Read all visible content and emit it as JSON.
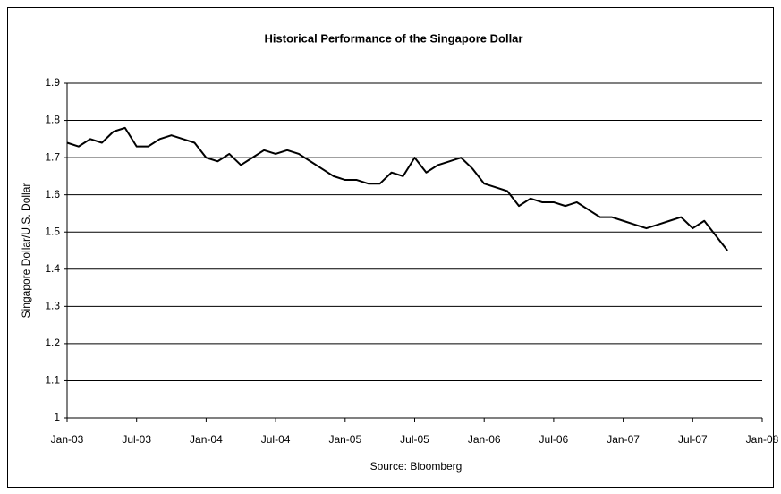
{
  "chart_data": {
    "type": "line",
    "title": "Historical Performance of the Singapore Dollar",
    "ylabel": "Singapore Dollar/U.S. Dollar",
    "xlabel": "Source: Bloomberg",
    "x": [
      "Jan-03",
      "Feb-03",
      "Mar-03",
      "Apr-03",
      "May-03",
      "Jun-03",
      "Jul-03",
      "Aug-03",
      "Sep-03",
      "Oct-03",
      "Nov-03",
      "Dec-03",
      "Jan-04",
      "Feb-04",
      "Mar-04",
      "Apr-04",
      "May-04",
      "Jun-04",
      "Jul-04",
      "Aug-04",
      "Sep-04",
      "Oct-04",
      "Nov-04",
      "Dec-04",
      "Jan-05",
      "Feb-05",
      "Mar-05",
      "Apr-05",
      "May-05",
      "Jun-05",
      "Jul-05",
      "Aug-05",
      "Sep-05",
      "Oct-05",
      "Nov-05",
      "Dec-05",
      "Jan-06",
      "Feb-06",
      "Mar-06",
      "Apr-06",
      "May-06",
      "Jun-06",
      "Jul-06",
      "Aug-06",
      "Sep-06",
      "Oct-06",
      "Nov-06",
      "Dec-06",
      "Jan-07",
      "Feb-07",
      "Mar-07",
      "Apr-07",
      "May-07",
      "Jun-07",
      "Jul-07",
      "Aug-07",
      "Sep-07",
      "Oct-07"
    ],
    "series": [
      {
        "name": "Singapore Dollar/U.S. Dollar",
        "color": "#000000",
        "values": [
          1.74,
          1.73,
          1.75,
          1.74,
          1.77,
          1.78,
          1.73,
          1.73,
          1.75,
          1.76,
          1.75,
          1.74,
          1.7,
          1.69,
          1.71,
          1.68,
          1.7,
          1.72,
          1.71,
          1.72,
          1.71,
          1.69,
          1.67,
          1.65,
          1.64,
          1.64,
          1.63,
          1.63,
          1.66,
          1.65,
          1.7,
          1.66,
          1.68,
          1.69,
          1.7,
          1.67,
          1.63,
          1.62,
          1.61,
          1.57,
          1.59,
          1.58,
          1.58,
          1.57,
          1.58,
          1.56,
          1.54,
          1.54,
          1.53,
          1.52,
          1.51,
          1.52,
          1.53,
          1.54,
          1.51,
          1.53,
          1.49,
          1.45
        ]
      }
    ],
    "xlim": [
      "Jan-03",
      "Jan-08"
    ],
    "xticks": [
      "Jan-03",
      "Jul-03",
      "Jan-04",
      "Jul-04",
      "Jan-05",
      "Jul-05",
      "Jan-06",
      "Jul-06",
      "Jan-07",
      "Jul-07",
      "Jan-08"
    ],
    "ylim": [
      1,
      1.9
    ],
    "yticks": [
      1,
      1.1,
      1.2,
      1.3,
      1.4,
      1.5,
      1.6,
      1.7,
      1.8,
      1.9
    ],
    "grid": true
  }
}
